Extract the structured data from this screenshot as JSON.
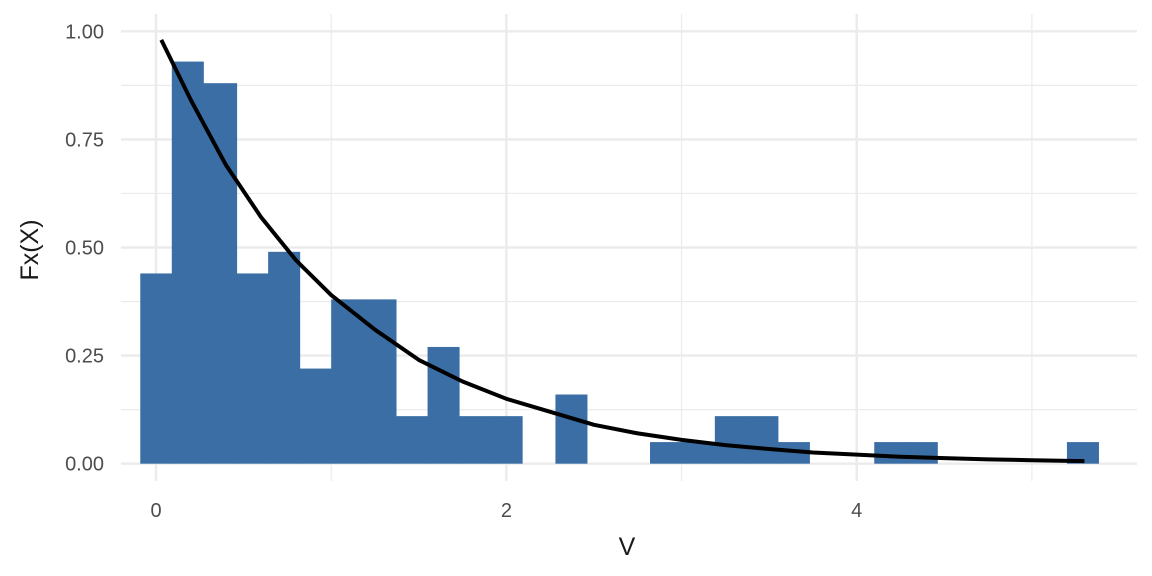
{
  "chart_data": {
    "type": "bar",
    "title": "",
    "xlabel": "V",
    "ylabel": "Fx(X)",
    "xlim": [
      -0.2,
      5.6
    ],
    "ylim": [
      -0.04,
      1.04
    ],
    "x_ticks": [
      0,
      2,
      4
    ],
    "x_tick_labels": [
      "0",
      "2",
      "4"
    ],
    "y_ticks": [
      0,
      0.25,
      0.5,
      0.75,
      1.0
    ],
    "y_tick_labels": [
      "0.00",
      "0.25",
      "0.50",
      "0.75",
      "1.00"
    ],
    "grid": true,
    "colors": {
      "bars": "#3a6ea5",
      "curve": "#000000",
      "grid": "#ebebeb"
    },
    "histogram": {
      "bins": [
        {
          "x0": -0.09,
          "x1": 0.09,
          "value": 0.44
        },
        {
          "x0": 0.09,
          "x1": 0.27,
          "value": 0.93
        },
        {
          "x0": 0.27,
          "x1": 0.46,
          "value": 0.88
        },
        {
          "x0": 0.46,
          "x1": 0.64,
          "value": 0.44
        },
        {
          "x0": 0.64,
          "x1": 0.82,
          "value": 0.49
        },
        {
          "x0": 0.82,
          "x1": 1.0,
          "value": 0.22
        },
        {
          "x0": 1.0,
          "x1": 1.19,
          "value": 0.38
        },
        {
          "x0": 1.19,
          "x1": 1.37,
          "value": 0.38
        },
        {
          "x0": 1.37,
          "x1": 1.55,
          "value": 0.11
        },
        {
          "x0": 1.55,
          "x1": 1.73,
          "value": 0.27
        },
        {
          "x0": 1.73,
          "x1": 1.91,
          "value": 0.11
        },
        {
          "x0": 1.91,
          "x1": 2.09,
          "value": 0.11
        },
        {
          "x0": 2.28,
          "x1": 2.46,
          "value": 0.16
        },
        {
          "x0": 2.82,
          "x1": 3.01,
          "value": 0.05
        },
        {
          "x0": 3.01,
          "x1": 3.19,
          "value": 0.05
        },
        {
          "x0": 3.19,
          "x1": 3.37,
          "value": 0.11
        },
        {
          "x0": 3.37,
          "x1": 3.55,
          "value": 0.11
        },
        {
          "x0": 3.55,
          "x1": 3.73,
          "value": 0.05
        },
        {
          "x0": 4.1,
          "x1": 4.28,
          "value": 0.05
        },
        {
          "x0": 4.28,
          "x1": 4.46,
          "value": 0.05
        },
        {
          "x0": 5.2,
          "x1": 5.38,
          "value": 0.05
        }
      ]
    },
    "curve": {
      "type": "line",
      "x": [
        0.03,
        0.2,
        0.4,
        0.6,
        0.8,
        1.0,
        1.25,
        1.5,
        1.75,
        2.0,
        2.25,
        2.5,
        2.75,
        3.0,
        3.25,
        3.5,
        3.75,
        4.0,
        4.25,
        4.5,
        4.75,
        5.0,
        5.3
      ],
      "y": [
        0.98,
        0.84,
        0.69,
        0.57,
        0.47,
        0.39,
        0.31,
        0.24,
        0.19,
        0.15,
        0.12,
        0.09,
        0.07,
        0.055,
        0.043,
        0.034,
        0.026,
        0.021,
        0.016,
        0.013,
        0.01,
        0.008,
        0.006
      ]
    }
  }
}
